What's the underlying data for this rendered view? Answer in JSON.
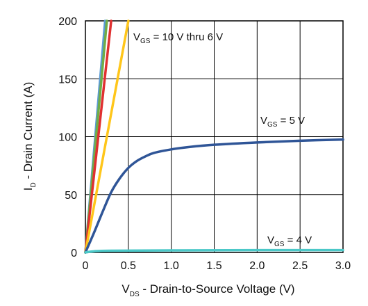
{
  "chart_data": {
    "type": "line",
    "xlabel": {
      "main": "V",
      "sub": "DS",
      "rest": " - Drain-to-Source Voltage (V)"
    },
    "ylabel": {
      "main": "I",
      "sub": "D",
      "rest": " - Drain Current (A)"
    },
    "xlim": [
      0,
      3.0
    ],
    "ylim": [
      0,
      200
    ],
    "x_ticks": [
      "0",
      "0.5",
      "1.0",
      "1.5",
      "2.0",
      "2.5",
      "3.0"
    ],
    "y_ticks": [
      "0",
      "50",
      "100",
      "150",
      "200"
    ],
    "grid": true,
    "series": [
      {
        "color": "#5b9bd5",
        "x": [
          0,
          0.23
        ],
        "y": [
          0,
          200
        ]
      },
      {
        "color": "#70ad47",
        "x": [
          0,
          0.25
        ],
        "y": [
          0,
          200
        ]
      },
      {
        "color": "#e03030",
        "x": [
          0,
          0.3
        ],
        "y": [
          0,
          200
        ]
      },
      {
        "color": "#ffc61a",
        "x": [
          0,
          0.5
        ],
        "y": [
          0,
          200
        ]
      },
      {
        "color": "#2f5597",
        "x": [
          0,
          0.1,
          0.2,
          0.3,
          0.4,
          0.5,
          0.6,
          0.7,
          0.8,
          1.0,
          1.2,
          1.5,
          2.0,
          2.5,
          3.0
        ],
        "y": [
          0,
          17,
          35,
          52,
          64,
          73,
          79,
          83,
          86,
          89,
          91,
          93,
          95,
          96.5,
          97.5
        ]
      },
      {
        "color": "#4bc8c8",
        "x": [
          0,
          0.1,
          0.3,
          1.0,
          2.0,
          3.0
        ],
        "y": [
          0,
          1,
          1.5,
          1.8,
          2,
          2
        ]
      }
    ],
    "annotations": [
      {
        "main": "V",
        "sub": "GS",
        "rest": " = 10 V thru 6 V"
      },
      {
        "main": "V",
        "sub": "GS",
        "rest": " = 5 V"
      },
      {
        "main": "V",
        "sub": "GS",
        "rest": " = 4 V"
      }
    ]
  }
}
